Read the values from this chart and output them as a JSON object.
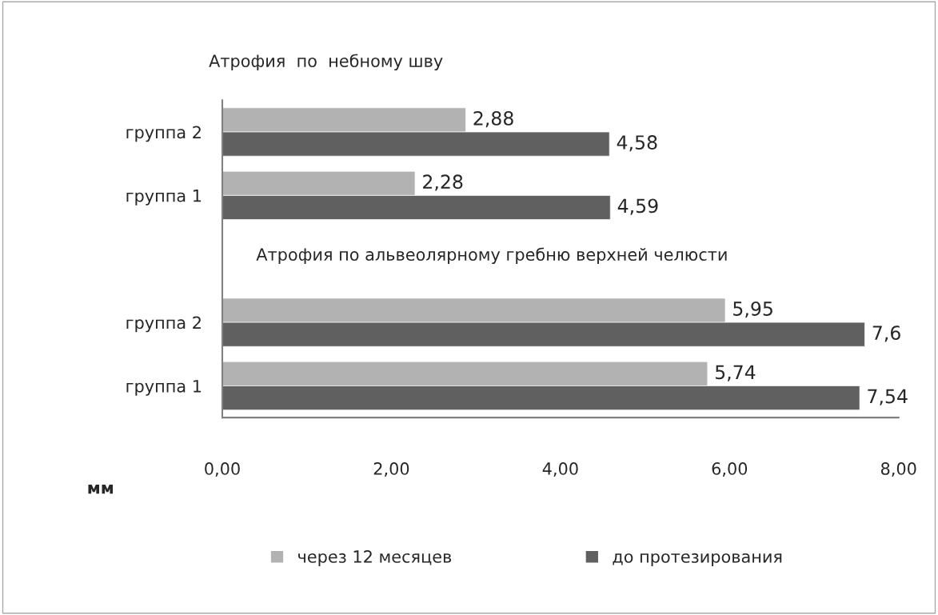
{
  "chart_data": {
    "type": "bar",
    "orientation": "horizontal",
    "title": "Атрофия  по  небному шву",
    "annotations": [
      "Атрофия по альвеолярному гребню верхней челюсти"
    ],
    "xlabel": "мм",
    "categories": [
      "группа 2",
      "группа 1",
      null,
      "группа 2",
      "группа 1"
    ],
    "series": [
      {
        "name": "через 12 месяцев",
        "color": "#b2b2b2",
        "values": [
          2.88,
          2.28,
          null,
          5.95,
          5.74
        ],
        "value_labels": [
          "2,88",
          "2,28",
          null,
          "5,95",
          "5,74"
        ]
      },
      {
        "name": "до протезирования",
        "color": "#606060",
        "values": [
          4.58,
          4.59,
          null,
          7.6,
          7.54
        ],
        "value_labels": [
          "4,58",
          "4,59",
          null,
          "7,6",
          "7,54"
        ]
      }
    ],
    "xlim": [
      0,
      8
    ],
    "xticks": [
      {
        "value": 0,
        "label": "0,00"
      },
      {
        "value": 2,
        "label": "2,00"
      },
      {
        "value": 4,
        "label": "4,00"
      },
      {
        "value": 6,
        "label": "6,00"
      },
      {
        "value": 8,
        "label": "8,00"
      }
    ],
    "grid": false,
    "legend": "bottom"
  }
}
